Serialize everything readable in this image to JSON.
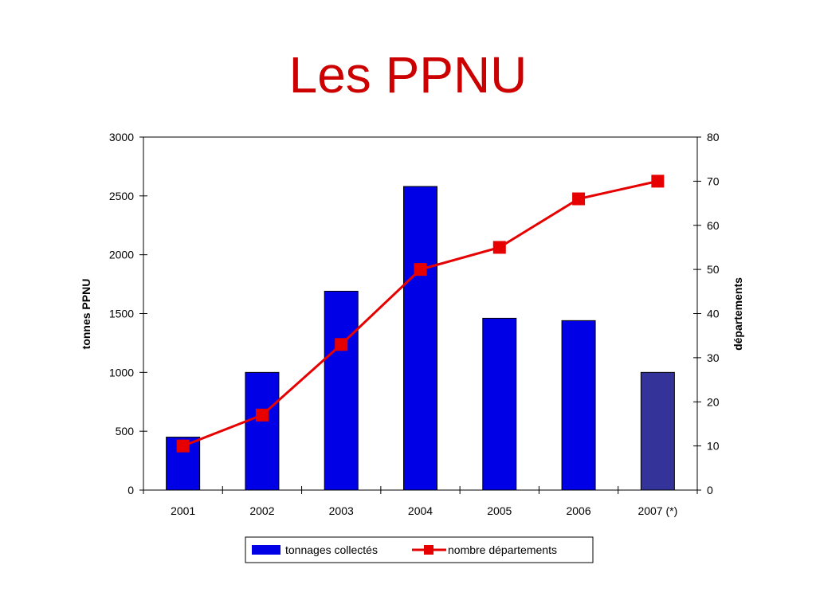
{
  "slide": {
    "title": "Les PPNU"
  },
  "colors": {
    "title": "#cc0000",
    "bar": "#0000e6",
    "bar_last": "#333399",
    "line": "#e60000",
    "axis": "#000000"
  },
  "chart_data": {
    "type": "bar",
    "categories": [
      "2001",
      "2002",
      "2003",
      "2004",
      "2005",
      "2006",
      "2007 (*)"
    ],
    "series": [
      {
        "name": "tonnages collectés",
        "type": "bar",
        "axis": "left",
        "values": [
          450,
          1000,
          1690,
          2580,
          1460,
          1440,
          1000
        ]
      },
      {
        "name": "nombre départements",
        "type": "line",
        "axis": "right",
        "values": [
          10,
          17,
          33,
          50,
          55,
          66,
          70
        ]
      }
    ],
    "ylabel": "tonnes PPNU",
    "y2label": "départements",
    "ylim": [
      0,
      3000
    ],
    "y2lim": [
      0,
      80
    ],
    "yticks": [
      "0",
      "500",
      "1000",
      "1500",
      "2000",
      "2500",
      "3000"
    ],
    "y2ticks": [
      "0",
      "10",
      "20",
      "30",
      "40",
      "50",
      "60",
      "70",
      "80"
    ],
    "grid": false,
    "legend_position": "bottom"
  }
}
